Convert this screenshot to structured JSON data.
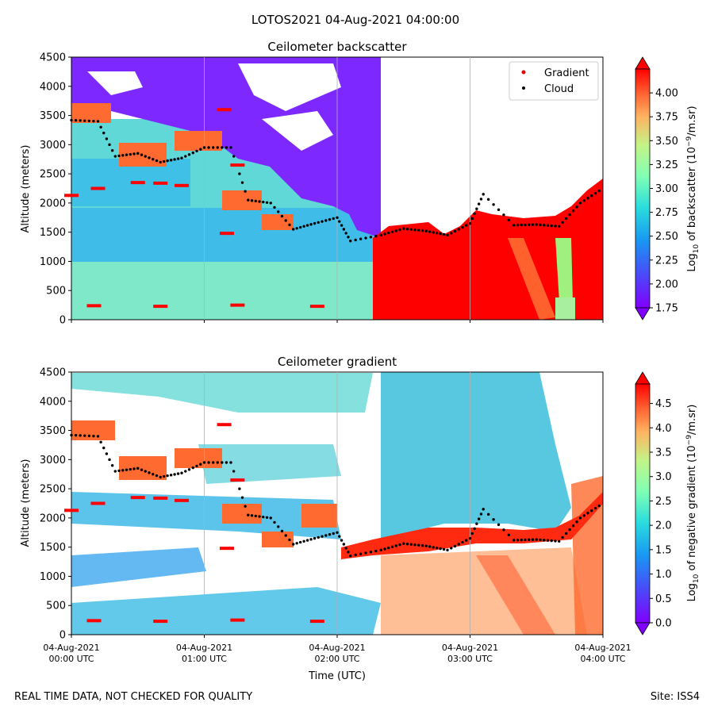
{
  "figure": {
    "title": "LOTOS2021 04-Aug-2021 04:00:00",
    "footer_left": "REAL TIME DATA, NOT CHECKED FOR QUALITY",
    "footer_right": "Site: ISS4"
  },
  "colors": {
    "cloud_marker": "#000000",
    "gradient_marker": "#ff0000",
    "grid": "#b0b0b0",
    "axis": "#000000"
  },
  "legend": {
    "gradient_label": "Gradient",
    "cloud_label": "Cloud"
  },
  "chart_data": [
    {
      "type": "heatmap",
      "title": "Ceilometer backscatter",
      "ylabel": "Altitude (meters)",
      "ylim": [
        0,
        4500
      ],
      "yticks": [
        "0",
        "500",
        "1000",
        "1500",
        "2000",
        "2500",
        "3000",
        "3500",
        "4000",
        "4500"
      ],
      "colorbar": {
        "label_prefix": "Log",
        "label_sub": "10",
        "label_mid": " of backscatter (10",
        "label_sup": "−9",
        "label_suffix": "/m.sr)",
        "range": [
          1.75,
          4.25
        ],
        "ticks": [
          "1.75",
          "2.00",
          "2.25",
          "2.50",
          "2.75",
          "3.00",
          "3.25",
          "3.50",
          "3.75",
          "4.00"
        ]
      },
      "series": [
        {
          "name": "Cloud",
          "approx_height_m": [
            [
              0.0,
              3420
            ],
            [
              0.2,
              3400
            ],
            [
              0.33,
              2800
            ],
            [
              0.5,
              2850
            ],
            [
              0.67,
              2700
            ],
            [
              0.83,
              2770
            ],
            [
              1.0,
              2950
            ],
            [
              1.2,
              2950
            ],
            [
              1.33,
              2050
            ],
            [
              1.5,
              2000
            ],
            [
              1.67,
              1550
            ],
            [
              1.83,
              1650
            ],
            [
              2.0,
              1750
            ],
            [
              2.1,
              1350
            ],
            [
              2.33,
              1450
            ],
            [
              2.5,
              1560
            ],
            [
              2.67,
              1520
            ],
            [
              2.83,
              1450
            ],
            [
              3.0,
              1650
            ],
            [
              3.1,
              2150
            ],
            [
              3.33,
              1620
            ],
            [
              3.5,
              1630
            ],
            [
              3.67,
              1600
            ],
            [
              3.83,
              2000
            ],
            [
              4.0,
              2250
            ]
          ]
        },
        {
          "name": "Gradient",
          "approx_height_m": [
            [
              0.0,
              2130
            ],
            [
              0.2,
              2250
            ],
            [
              0.5,
              2350
            ],
            [
              0.67,
              2340
            ],
            [
              0.83,
              2300
            ],
            [
              0.17,
              240
            ],
            [
              0.67,
              230
            ],
            [
              1.25,
              250
            ],
            [
              1.85,
              230
            ],
            [
              1.15,
              3600
            ],
            [
              1.25,
              2650
            ],
            [
              1.17,
              1480
            ]
          ]
        }
      ]
    },
    {
      "type": "heatmap",
      "title": "Ceilometer gradient",
      "ylabel": "Altitude (meters)",
      "xlabel": "Time (UTC)",
      "ylim": [
        0,
        4500
      ],
      "yticks": [
        "0",
        "500",
        "1000",
        "1500",
        "2000",
        "2500",
        "3000",
        "3500",
        "4000",
        "4500"
      ],
      "xticks": [
        {
          "line1": "04-Aug-2021",
          "line2": "00:00 UTC"
        },
        {
          "line1": "04-Aug-2021",
          "line2": "01:00 UTC"
        },
        {
          "line1": "04-Aug-2021",
          "line2": "02:00 UTC"
        },
        {
          "line1": "04-Aug-2021",
          "line2": "03:00 UTC"
        },
        {
          "line1": "04-Aug-2021",
          "line2": "04:00 UTC"
        }
      ],
      "colorbar": {
        "label_prefix": "Log",
        "label_sub": "10",
        "label_mid": " of negative gradient (10",
        "label_sup": "−9",
        "label_suffix": "/m.sr)",
        "range": [
          0.0,
          4.9
        ],
        "ticks": [
          "0.0",
          "0.5",
          "1.0",
          "1.5",
          "2.0",
          "2.5",
          "3.0",
          "3.5",
          "4.0",
          "4.5"
        ]
      }
    }
  ]
}
